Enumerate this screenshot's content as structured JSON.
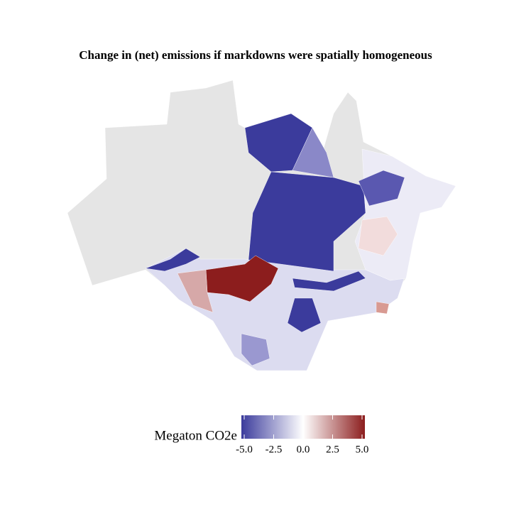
{
  "chart_data": {
    "type": "map",
    "title": "Change in (net) emissions if markdowns were spatially homogeneous",
    "legend": {
      "title": "Megaton CO2e",
      "lim": [
        -5,
        5
      ],
      "ticks": [
        {
          "value": -5,
          "label": "-5.0"
        },
        {
          "value": -2.5,
          "label": "-2.5"
        },
        {
          "value": 0,
          "label": "0.0"
        },
        {
          "value": 2.5,
          "label": "2.5"
        },
        {
          "value": 5,
          "label": "5.0"
        }
      ],
      "colors": [
        "#3b3b9c",
        "#ffffff",
        "#8c1d1d"
      ]
    }
  }
}
